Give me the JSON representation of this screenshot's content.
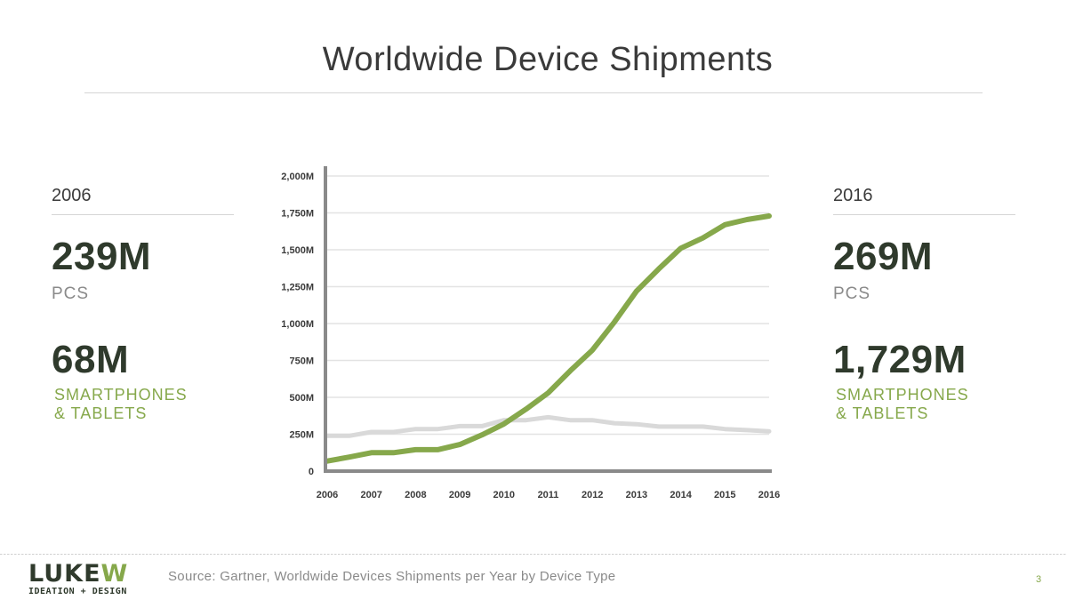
{
  "title": "Worldwide Device Shipments",
  "left_stats": {
    "year": "2006",
    "pcs_value": "239M",
    "pcs_label": "PCS",
    "mobile_value": "68M",
    "mobile_label_line1": "SMARTPHONES",
    "mobile_label_line2": "& TABLETS"
  },
  "right_stats": {
    "year": "2016",
    "pcs_value": "269M",
    "pcs_label": "PCS",
    "mobile_value": "1,729M",
    "mobile_label_line1": "SMARTPHONES",
    "mobile_label_line2": "& TABLETS"
  },
  "chart_data": {
    "type": "line",
    "x": [
      2006,
      2006.5,
      2007,
      2007.5,
      2008,
      2008.5,
      2009,
      2009.5,
      2010,
      2010.5,
      2011,
      2011.5,
      2012,
      2012.5,
      2013,
      2013.5,
      2014,
      2014.5,
      2015,
      2015.5,
      2016
    ],
    "x_tick_labels": [
      "2006",
      "2007",
      "2008",
      "2009",
      "2010",
      "2011",
      "2012",
      "2013",
      "2014",
      "2015",
      "2016"
    ],
    "y_tick_labels": [
      "0",
      "250M",
      "500M",
      "750M",
      "1,000M",
      "1,250M",
      "1,500M",
      "1,750M",
      "2,000M"
    ],
    "ylim": [
      0,
      2000
    ],
    "grid": true,
    "series": [
      {
        "values": [
          239,
          239,
          265,
          265,
          285,
          285,
          305,
          305,
          345,
          345,
          365,
          345,
          345,
          325,
          318,
          302,
          302,
          302,
          285,
          278,
          269
        ],
        "color": "#d9d9d9"
      },
      {
        "values": [
          68,
          95,
          125,
          125,
          145,
          145,
          180,
          245,
          320,
          420,
          530,
          680,
          820,
          1010,
          1220,
          1370,
          1510,
          1580,
          1670,
          1705,
          1729
        ],
        "color": "#86a84b"
      }
    ]
  },
  "footer": {
    "logo_word": "LUKE",
    "logo_word_accent": "W",
    "logo_tagline": "IDEATION + DESIGN",
    "source": "Source: Gartner, Worldwide Devices Shipments per Year by Device Type",
    "page_number": "3"
  },
  "colors": {
    "accent_green": "#86a84b",
    "dark_text": "#2f3a2c",
    "muted_text": "#8a8a8a",
    "axis": "#8a8a8a",
    "grid": "#e3e3e3"
  }
}
